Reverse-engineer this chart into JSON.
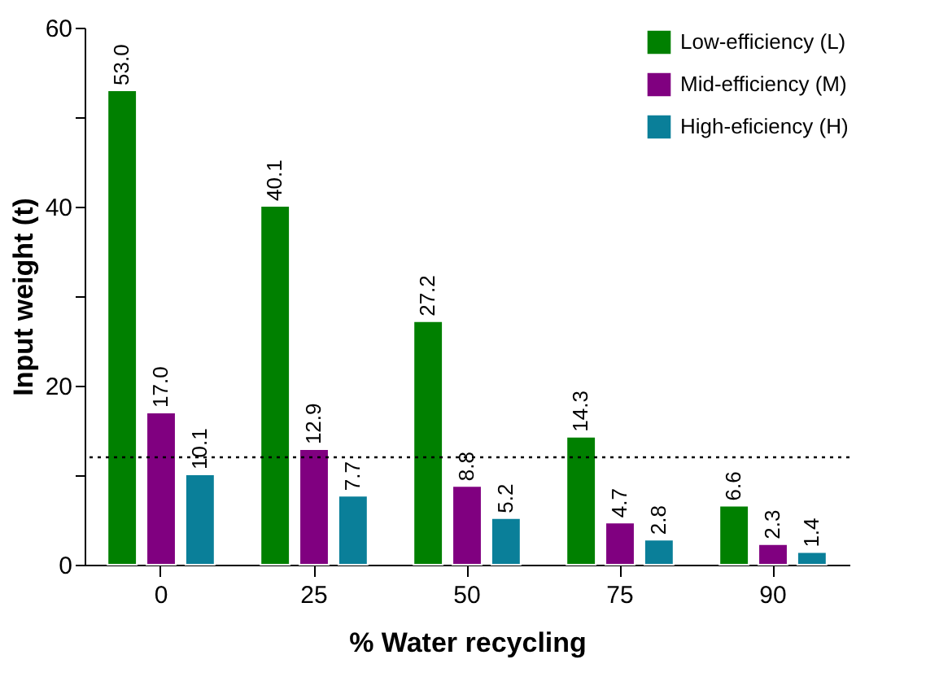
{
  "chart_data": {
    "type": "bar",
    "xlabel": "% Water recycling",
    "ylabel": "Input weight (t)",
    "categories": [
      "0",
      "25",
      "50",
      "75",
      "90"
    ],
    "series": [
      {
        "name": "Low-efficiency (L)",
        "color": "#008000",
        "values": [
          53.0,
          40.1,
          27.2,
          14.3,
          6.6
        ],
        "value_labels": [
          "53.0",
          "40.1",
          "27.2",
          "14.3",
          "6.6"
        ]
      },
      {
        "name": "Mid-efficiency (M)",
        "color": "#800080",
        "values": [
          17.0,
          12.9,
          8.8,
          4.7,
          2.3
        ],
        "value_labels": [
          "17.0",
          "12.9",
          "8.8",
          "4.7",
          "2.3"
        ]
      },
      {
        "name": "High-eficiency (H)",
        "color": "#0a7f99",
        "values": [
          10.1,
          7.7,
          5.2,
          2.8,
          1.4
        ],
        "value_labels": [
          "10.1",
          "7.7",
          "5.2",
          "2.8",
          "1.4"
        ]
      }
    ],
    "ylim": [
      0,
      60
    ],
    "yticks": [
      0,
      {
        "value": 10,
        "label": null
      },
      20,
      {
        "value": 30,
        "label": null
      },
      40,
      {
        "value": 50,
        "label": null
      },
      60
    ],
    "ref_lines": [
      {
        "axis": "y",
        "value": 12,
        "line_style": "dotted",
        "color": "#000000"
      }
    ],
    "grid": false,
    "legend": "top right"
  }
}
